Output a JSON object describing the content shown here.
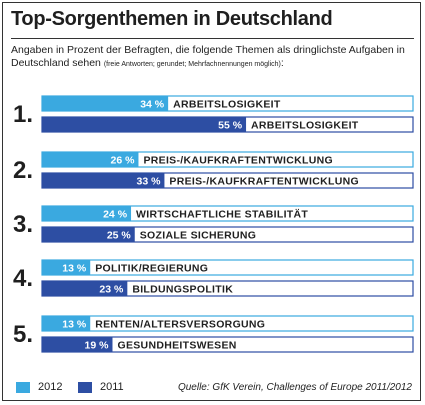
{
  "title": "Top-Sorgenthemen in Deutschland",
  "subtitle": {
    "main": "Angaben in Prozent der Befragten, die folgende Themen als dringlichste Aufgaben in Deutschland sehen",
    "note": "(freie Antworten; gerundet; Mehrfachnennungen möglich)",
    "end": ":"
  },
  "colors": {
    "light": "#3aa9e0",
    "dark": "#2d4ea3",
    "text": "#1f1f1f"
  },
  "legend": [
    {
      "label": "2012",
      "color": "#3aa9e0"
    },
    {
      "label": "2011",
      "color": "#2d4ea3"
    }
  ],
  "source": "Quelle: GfK Verein, Challenges of Europe 2011/2012",
  "chart_data": {
    "type": "bar",
    "orientation": "horizontal",
    "unit": "%",
    "xlim": [
      0,
      100
    ],
    "grid": false,
    "legend_position": "bottom-left",
    "ranks": [
      "1.",
      "2.",
      "3.",
      "4.",
      "5."
    ],
    "series": [
      {
        "name": "2012",
        "color": "#3aa9e0",
        "categories": [
          "ARBEITSLOSIGKEIT",
          "PREIS-/KAUFKRAFTENTWICKLUNG",
          "WIRTSCHAFTLICHE STABILITÄT",
          "POLITIK/REGIERUNG",
          "RENTEN/ALTERSVERSORGUNG"
        ],
        "values": [
          34,
          26,
          24,
          13,
          13
        ],
        "labels": [
          "34 %",
          "26 %",
          "24 %",
          "13 %",
          "13 %"
        ]
      },
      {
        "name": "2011",
        "color": "#2d4ea3",
        "categories": [
          "ARBEITSLOSIGKEIT",
          "PREIS-/KAUFKRAFTENTWICKLUNG",
          "SOZIALE SICHERUNG",
          "BILDUNGSPOLITIK",
          "GESUNDHEITSWESEN"
        ],
        "values": [
          55,
          33,
          25,
          23,
          19
        ],
        "labels": [
          "55 %",
          "33 %",
          "25 %",
          "23 %",
          "19 %"
        ]
      }
    ]
  }
}
